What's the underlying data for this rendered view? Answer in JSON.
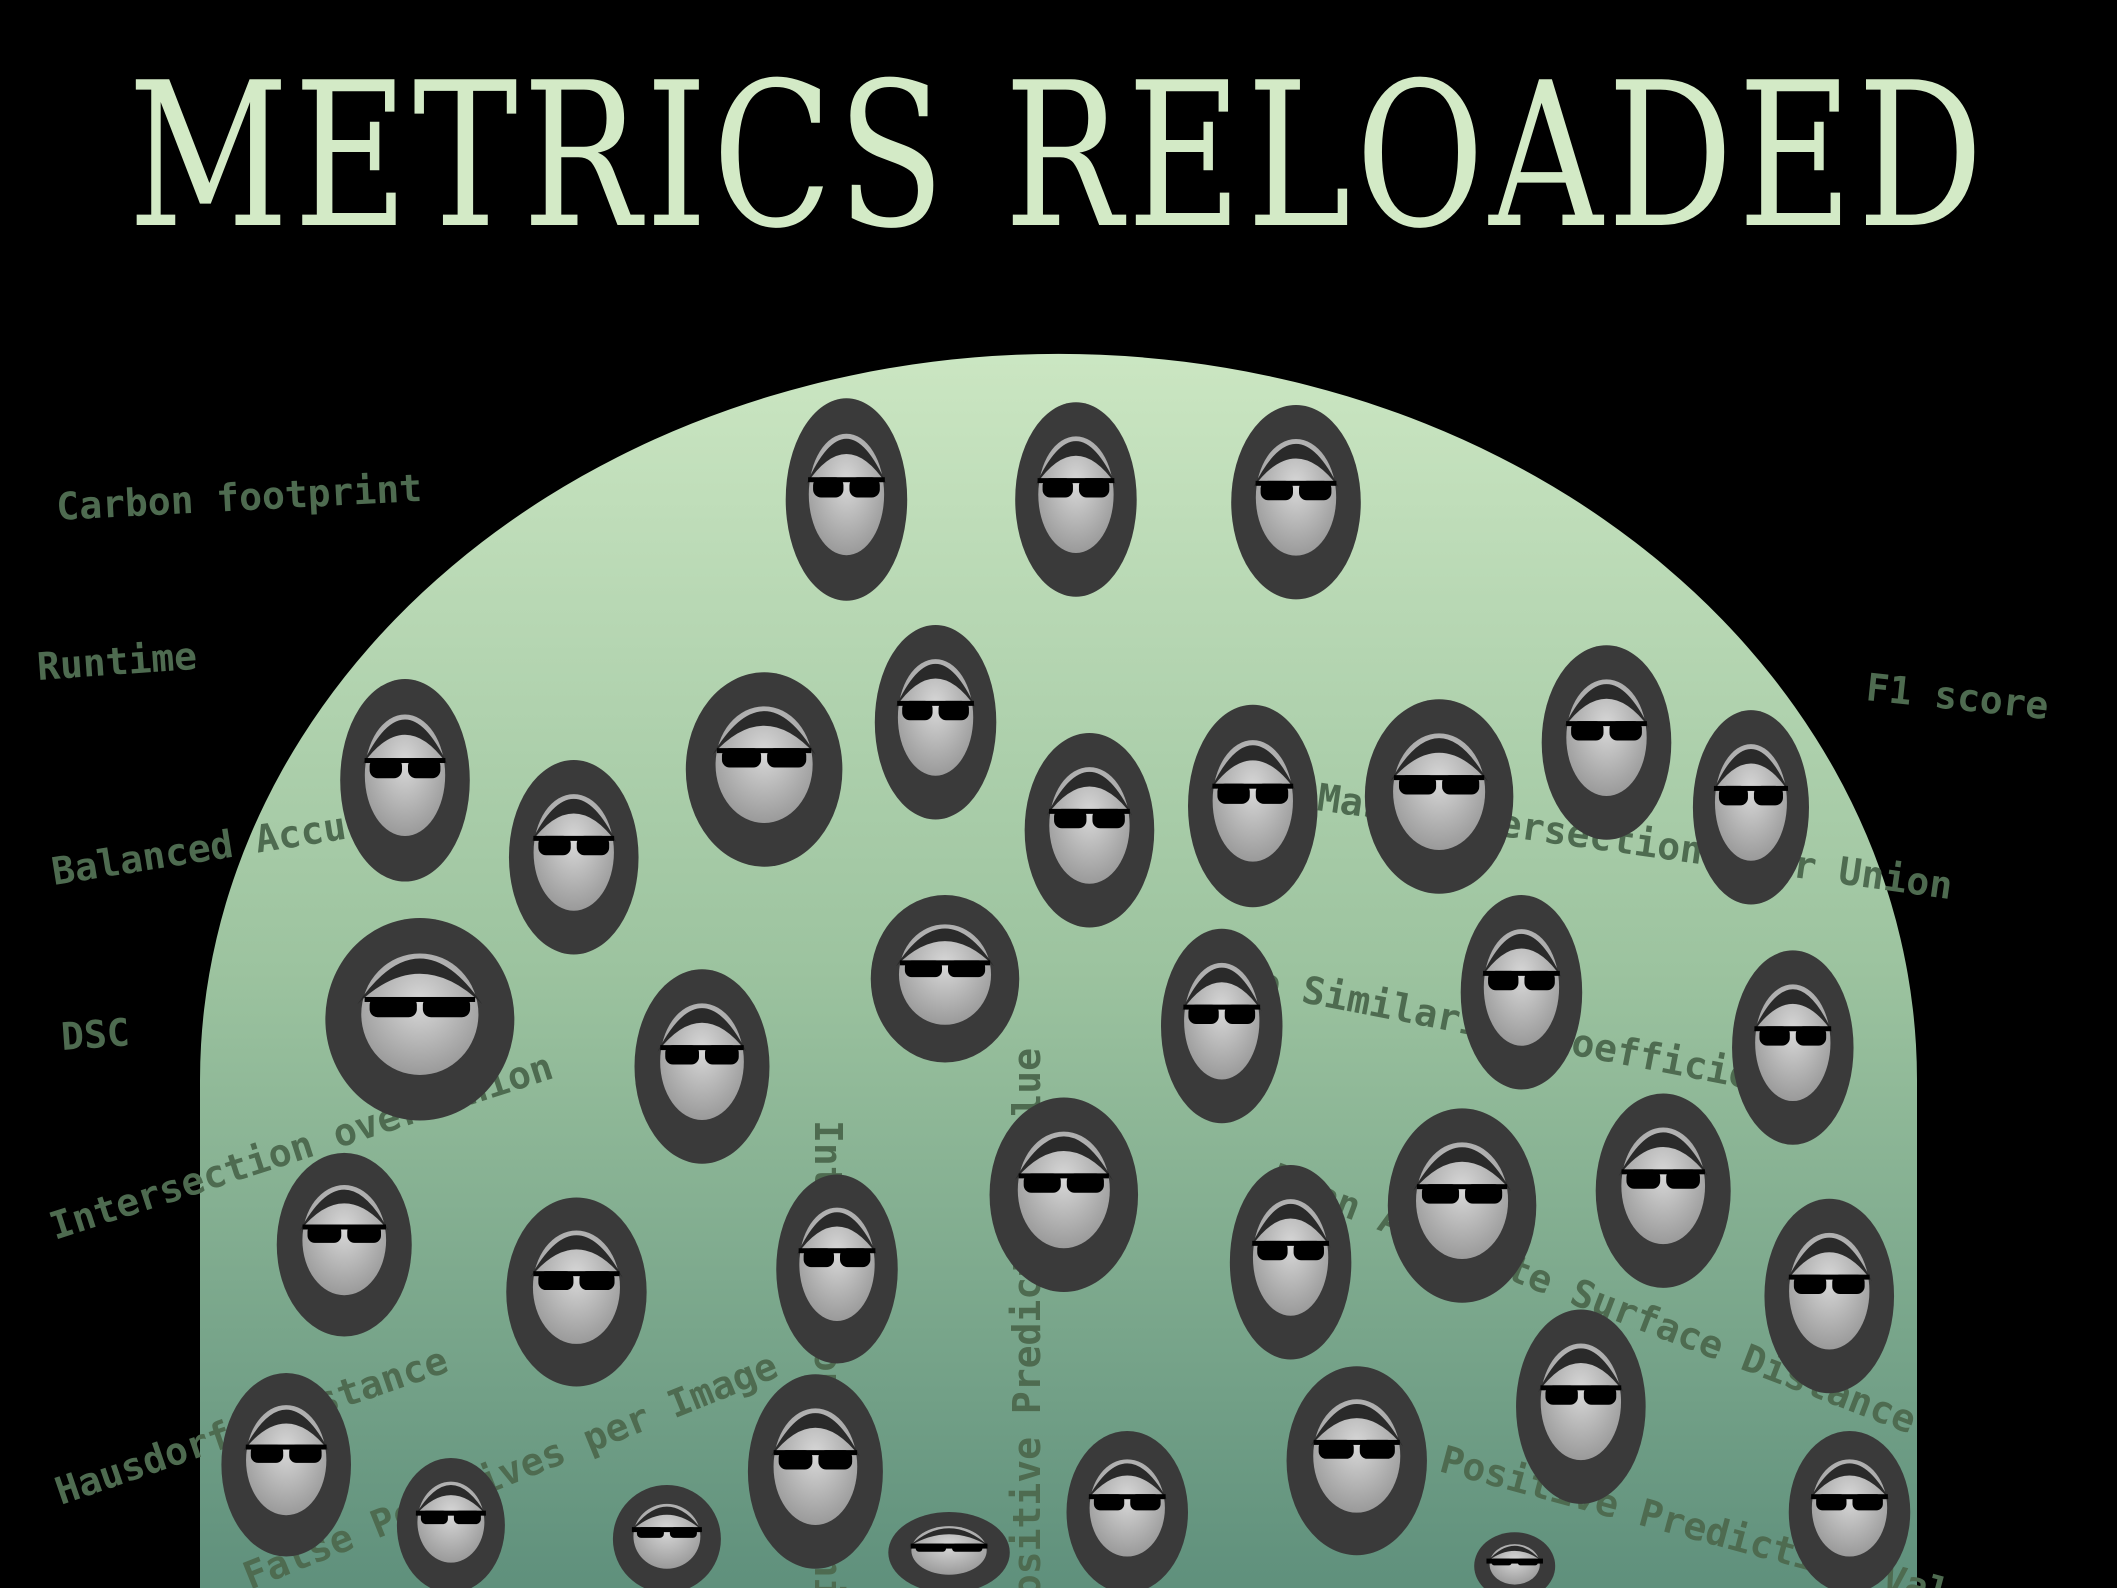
{
  "title": "METRICS RELOADED",
  "metrics": [
    "Carbon footprint",
    "Runtime",
    "Balanced Accuracy",
    "DSC",
    "Intersection over Union",
    "F1 score",
    "Mask Intersection over Union",
    "Dice Similarity Coefficient",
    "Mean Absolute Surface Distance",
    "Hausdorff Distance",
    "False Positives per Image",
    "Positive Predictive Value",
    "Intersection over Union",
    "Positive Predictive Value"
  ]
}
